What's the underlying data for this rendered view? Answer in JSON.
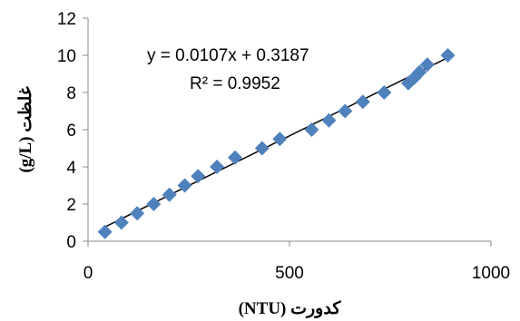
{
  "chart_data": {
    "type": "scatter",
    "xlabel": "کدورت (NTU)",
    "ylabel": "غلظت (g/L)",
    "xlim": [
      0,
      1000
    ],
    "ylim": [
      0,
      12
    ],
    "xticks": [
      "0",
      "500",
      "1000"
    ],
    "yticks": [
      "0",
      "2",
      "4",
      "6",
      "8",
      "10",
      "12"
    ],
    "grid": false,
    "marker_color": "#4F81BD",
    "trendline_color": "#000000",
    "series": [
      {
        "x": [
          42,
          83,
          122,
          163,
          202,
          240,
          273,
          320,
          365,
          432,
          476,
          555,
          598,
          638,
          682,
          735,
          795,
          810,
          823,
          842,
          893
        ],
        "y": [
          0.5,
          1.0,
          1.5,
          2.0,
          2.5,
          3.0,
          3.5,
          4.0,
          4.5,
          5.0,
          5.5,
          6.0,
          6.5,
          7.0,
          7.5,
          8.0,
          8.5,
          8.8,
          9.1,
          9.5,
          10.0
        ]
      }
    ],
    "trendline": {
      "slope": 0.0107,
      "intercept": 0.3187,
      "x_range": [
        42,
        893
      ],
      "equation": "y = 0.0107x + 0.3187",
      "r_squared": "R² = 0.9952"
    }
  }
}
